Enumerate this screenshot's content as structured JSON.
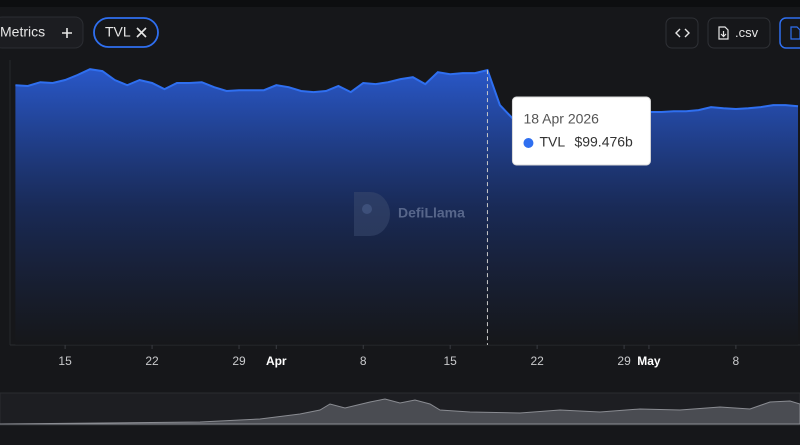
{
  "ui": {
    "metrics_button": "Metrics",
    "csv_button": ".csv",
    "watermark": "DefiLlama"
  },
  "chart_data": {
    "type": "area",
    "x": [
      "2026-03-11",
      "2026-03-12",
      "2026-03-13",
      "2026-03-14",
      "2026-03-15",
      "2026-03-16",
      "2026-03-17",
      "2026-03-18",
      "2026-03-19",
      "2026-03-20",
      "2026-03-21",
      "2026-03-22",
      "2026-03-23",
      "2026-03-24",
      "2026-03-25",
      "2026-03-26",
      "2026-03-27",
      "2026-03-28",
      "2026-03-29",
      "2026-03-30",
      "2026-03-31",
      "2026-04-01",
      "2026-04-02",
      "2026-04-03",
      "2026-04-04",
      "2026-04-05",
      "2026-04-06",
      "2026-04-07",
      "2026-04-08",
      "2026-04-09",
      "2026-04-10",
      "2026-04-11",
      "2026-04-12",
      "2026-04-13",
      "2026-04-14",
      "2026-04-15",
      "2026-04-16",
      "2026-04-17",
      "2026-04-18",
      "2026-04-19",
      "2026-04-20",
      "2026-04-21",
      "2026-04-22",
      "2026-04-23",
      "2026-04-24",
      "2026-04-25",
      "2026-04-26",
      "2026-04-27",
      "2026-04-28",
      "2026-04-29",
      "2026-04-30",
      "2026-05-01",
      "2026-05-02",
      "2026-05-03",
      "2026-05-04",
      "2026-05-05",
      "2026-05-06",
      "2026-05-07",
      "2026-05-08",
      "2026-05-09",
      "2026-05-10",
      "2026-05-11",
      "2026-05-12",
      "2026-05-13"
    ],
    "series": [
      {
        "name": "TVL",
        "color": "#2f6ff0",
        "values": [
          94.0,
          93.7,
          95.1,
          94.8,
          95.9,
          97.7,
          99.8,
          99.1,
          95.9,
          94.0,
          95.9,
          94.8,
          92.6,
          94.8,
          94.8,
          95.1,
          93.3,
          91.9,
          92.2,
          92.2,
          92.2,
          94.0,
          93.3,
          91.9,
          91.5,
          91.9,
          93.7,
          91.5,
          94.8,
          94.4,
          95.1,
          96.2,
          96.9,
          94.4,
          98.7,
          98.0,
          98.4,
          98.4,
          99.476,
          86.8,
          82.1,
          81.4,
          81.7,
          82.1,
          81.7,
          82.1,
          82.1,
          82.5,
          82.8,
          83.2,
          83.9,
          84.3,
          84.3,
          84.6,
          84.6,
          85.0,
          86.1,
          85.7,
          85.4,
          85.7,
          86.1,
          86.8,
          86.8,
          86.4
        ]
      }
    ],
    "xlim": [
      "2026-03-10",
      "2026-05-13"
    ],
    "ylim": [
      0,
      110
    ],
    "xticks": [
      {
        "value": "2026-03-15",
        "label": "15"
      },
      {
        "value": "2026-03-22",
        "label": "22"
      },
      {
        "value": "2026-03-29",
        "label": "29"
      },
      {
        "value": "2026-04-01",
        "label": "Apr"
      },
      {
        "value": "2026-04-08",
        "label": "8"
      },
      {
        "value": "2026-04-15",
        "label": "15"
      },
      {
        "value": "2026-04-22",
        "label": "22"
      },
      {
        "value": "2026-04-29",
        "label": "29"
      },
      {
        "value": "2026-05-01",
        "label": "May"
      },
      {
        "value": "2026-05-08",
        "label": "8"
      }
    ],
    "tooltip": {
      "x": "2026-04-18",
      "title": "18 Apr 2026",
      "value_label": "$99.476b"
    }
  }
}
